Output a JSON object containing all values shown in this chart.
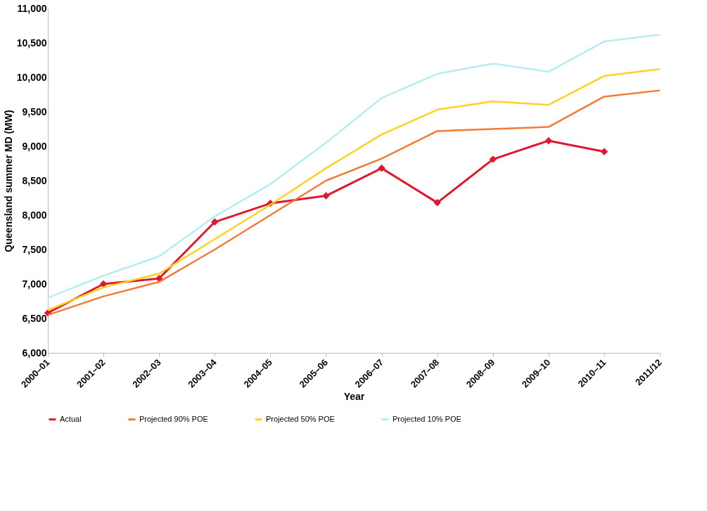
{
  "chart_data": {
    "type": "line",
    "xlabel": "Year",
    "ylabel": "Queensland summer MD (MW)",
    "categories": [
      "2000–01",
      "2001–02",
      "2002–03",
      "2003–04",
      "2004–05",
      "2005–06",
      "2006–07",
      "2007–08",
      "2008–09",
      "2009–10",
      "2010–11",
      "2011/12"
    ],
    "series": [
      {
        "name": "Actual",
        "color": "#e0182d",
        "marker": "diamond",
        "values": [
          6580,
          7000,
          7080,
          7900,
          8170,
          8280,
          8680,
          8180,
          8810,
          9080,
          8920,
          null
        ]
      },
      {
        "name": "Projected 90% POE",
        "color": "#f47a30",
        "marker": "none",
        "values": [
          6550,
          6820,
          7030,
          7500,
          8000,
          8500,
          8820,
          9220,
          9250,
          9280,
          9720,
          9810
        ]
      },
      {
        "name": "Projected 50% POE",
        "color": "#ffd21f",
        "marker": "none",
        "values": [
          6620,
          6950,
          7150,
          7650,
          8150,
          8680,
          9170,
          9530,
          9650,
          9600,
          10020,
          10120
        ]
      },
      {
        "name": "Projected 10% POE",
        "color": "#b4eef2",
        "marker": "none",
        "values": [
          6800,
          7120,
          7400,
          7980,
          8450,
          9050,
          9700,
          10050,
          10200,
          10080,
          10520,
          10620
        ]
      }
    ],
    "ylim": [
      6000,
      11000
    ],
    "yticks": [
      {
        "value": 6000,
        "label": "6,000"
      },
      {
        "value": 6500,
        "label": "6,500"
      },
      {
        "value": 7000,
        "label": "7,000"
      },
      {
        "value": 7500,
        "label": "7,500"
      },
      {
        "value": 8000,
        "label": "8,000"
      },
      {
        "value": 8500,
        "label": "8,500"
      },
      {
        "value": 9000,
        "label": "9,000"
      },
      {
        "value": 9500,
        "label": "9,500"
      },
      {
        "value": 10000,
        "label": "10,000"
      },
      {
        "value": 10500,
        "label": "10,500"
      },
      {
        "value": 11000,
        "label": "11,000"
      }
    ],
    "grid": false,
    "legend": "bottom",
    "line_style": "solid"
  }
}
